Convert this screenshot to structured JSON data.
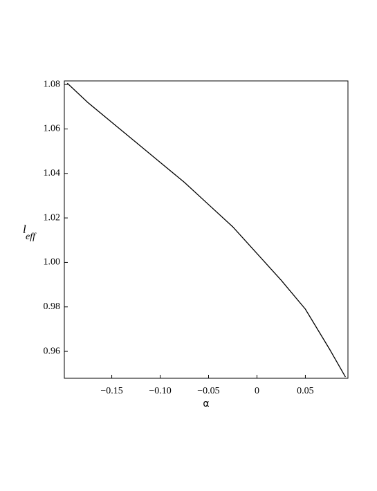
{
  "chart_data": {
    "type": "line",
    "xlabel": "α",
    "ylabel": "l",
    "ylabel_sub": "eff",
    "x": [
      -0.196,
      -0.175,
      -0.15,
      -0.125,
      -0.1,
      -0.075,
      -0.05,
      -0.025,
      0,
      0.025,
      0.05,
      0.075,
      0.0914
    ],
    "series": [
      {
        "color": "#000000",
        "values": [
          1.0806,
          1.072,
          1.063,
          1.054,
          1.045,
          1.036,
          1.026,
          1.016,
          1.004,
          0.992,
          0.979,
          0.961,
          0.9485
        ]
      }
    ],
    "xlim": [
      -0.199,
      0.094
    ],
    "ylim": [
      0.9479,
      1.0816
    ],
    "xticks": [
      {
        "value": -0.15,
        "label": "−0.15"
      },
      {
        "value": -0.1,
        "label": "−0.10"
      },
      {
        "value": -0.05,
        "label": "−0.05"
      },
      0,
      0.05
    ],
    "yticks": [
      0.96,
      0.98,
      {
        "value": 1,
        "label": "1.00"
      },
      1.02,
      1.04,
      1.06,
      1.08
    ],
    "grid": false
  }
}
